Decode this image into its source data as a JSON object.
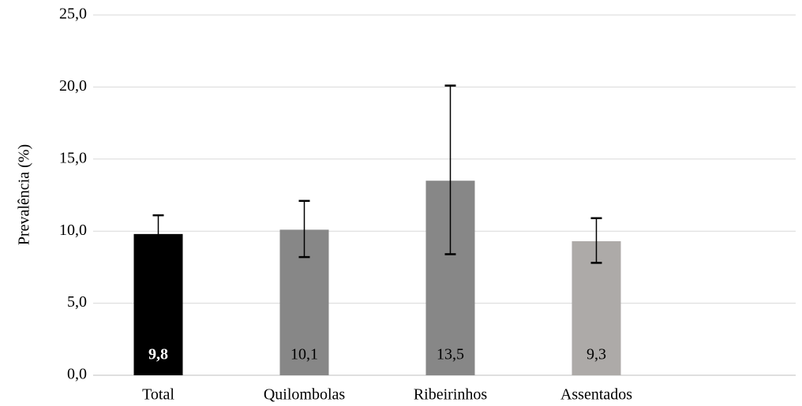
{
  "chart_data": {
    "type": "bar",
    "title": "",
    "xlabel": "",
    "ylabel": "Prevalência (%)",
    "ylim": [
      0,
      25
    ],
    "ytick_labels": [
      "0,0",
      "5,0",
      "10,0",
      "15,0",
      "20,0",
      "25,0"
    ],
    "grid": true,
    "categories": [
      "Total",
      "Quilombolas",
      "Ribeirinhos",
      "Assentados"
    ],
    "values": [
      9.8,
      10.1,
      13.5,
      9.3
    ],
    "value_labels": [
      "9,8",
      "10,1",
      "13,5",
      "9,3"
    ],
    "error_low": [
      8.8,
      8.2,
      8.4,
      7.8
    ],
    "error_high": [
      11.1,
      12.1,
      20.1,
      10.9
    ],
    "bar_colors": [
      "#000000",
      "#878787",
      "#878787",
      "#adaaa8"
    ],
    "label_colors": [
      "#ffffff",
      "#000000",
      "#000000",
      "#000000"
    ],
    "label_bold": [
      true,
      false,
      false,
      false
    ],
    "gridline_color": "#d9d9d9",
    "errorbar_color": "#000000"
  }
}
